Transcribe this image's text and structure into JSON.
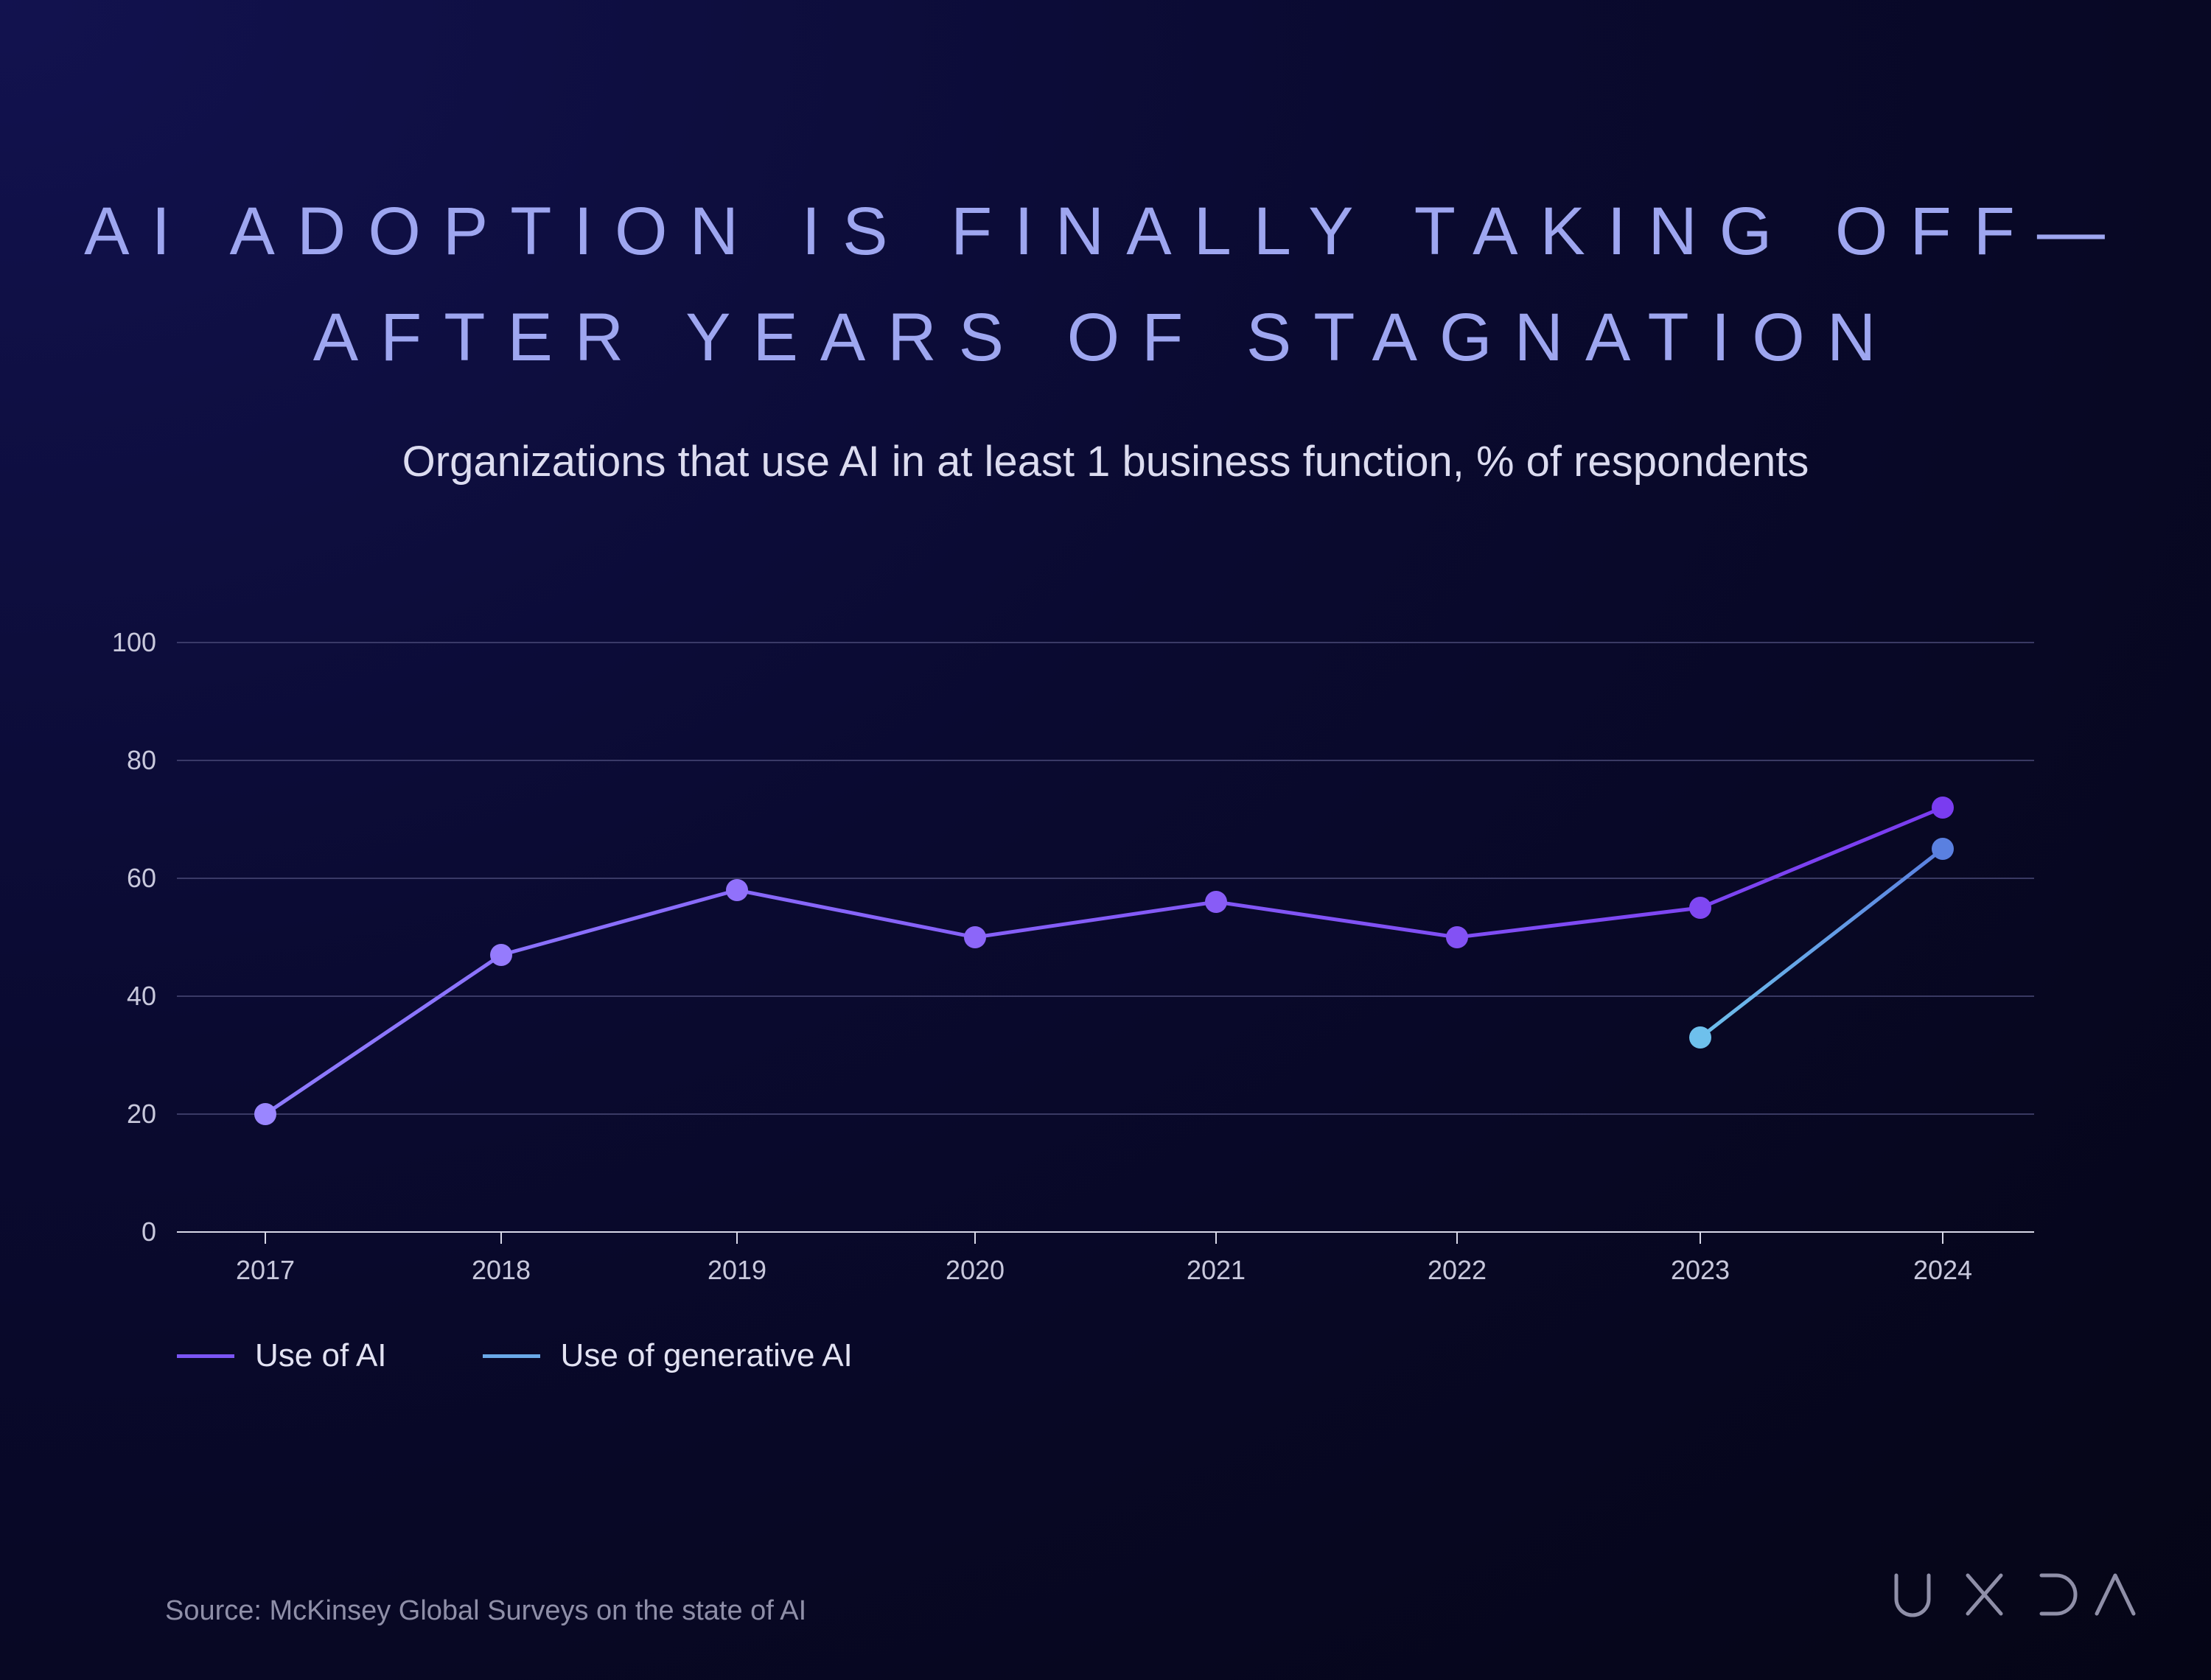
{
  "title_lines": [
    "AI ADOPTION IS FINALLY TAKING OFF—",
    "AFTER YEARS OF STAGNATION"
  ],
  "subtitle": "Organizations that use AI in at least 1 business function, % of respondents",
  "source": "Source: McKinsey Global Surveys on the state of AI",
  "brand": "UXDA",
  "colors": {
    "use_of_ai": "#7b55f5",
    "use_of_generative_ai": "#6aa9e8",
    "title": "#9ea6f0",
    "background": "#0a0a30"
  },
  "chart_data": {
    "type": "line",
    "x": [
      "2017",
      "2018",
      "2019",
      "2020",
      "2021",
      "2022",
      "2023",
      "2024"
    ],
    "ylim": [
      0,
      100
    ],
    "yticks": [
      "0",
      "20",
      "40",
      "60",
      "80",
      "100"
    ],
    "grid": true,
    "legend_position": "bottom-left",
    "series": [
      {
        "name": "Use of AI",
        "values": [
          20,
          47,
          58,
          50,
          56,
          50,
          55,
          72
        ]
      },
      {
        "name": "Use of generative AI",
        "values": [
          null,
          null,
          null,
          null,
          null,
          null,
          33,
          65
        ]
      }
    ]
  }
}
